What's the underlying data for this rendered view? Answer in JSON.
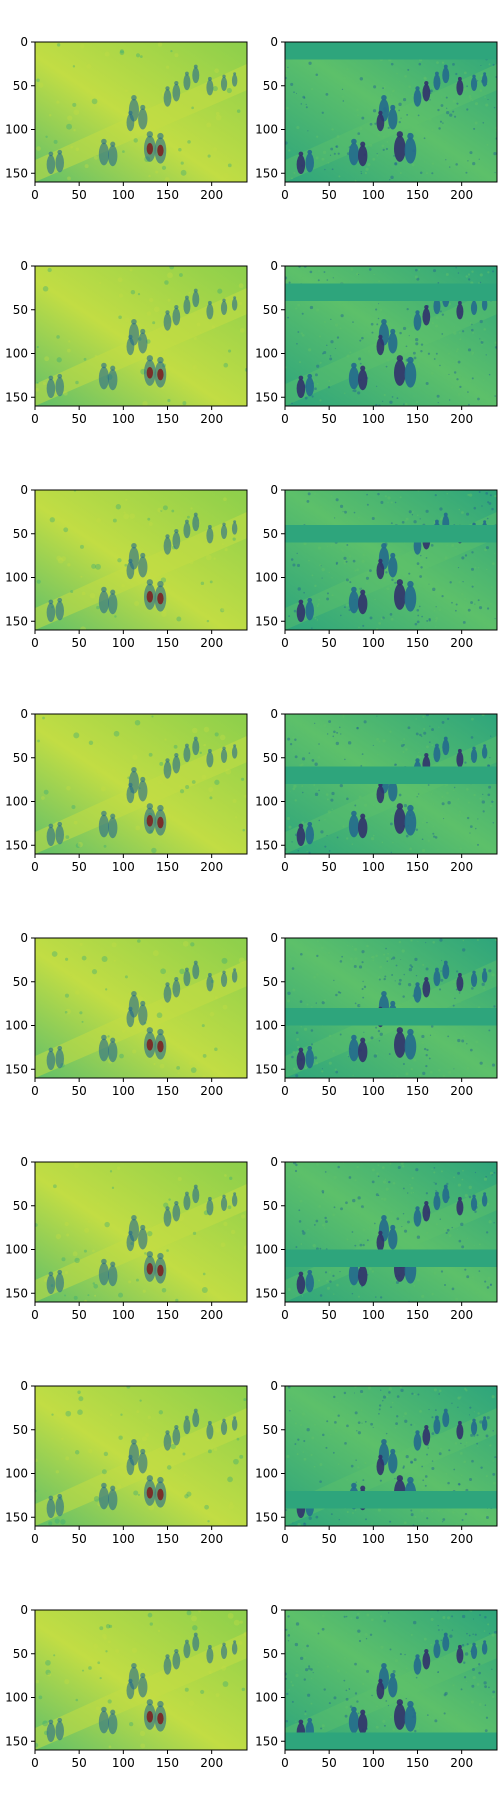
{
  "chart_data": {
    "type": "heatmap",
    "layout": "grid",
    "rows": 8,
    "cols": 2,
    "title": "",
    "xlabel": "",
    "ylabel": "",
    "xlim": [
      0,
      240
    ],
    "ylim": [
      160,
      0
    ],
    "x_ticks": [
      0,
      50,
      100,
      150,
      200
    ],
    "y_ticks": [
      0,
      50,
      100,
      150
    ],
    "colormap": "viridis",
    "palette": {
      "left_bg": "#8ccf4c",
      "left_bg_light": "#c2dd44",
      "left_bg_dark": "#61bf69",
      "right_bg": "#2ea57c",
      "right_light": "#5dc06a",
      "right_dark": "#3a5c8e",
      "figure_dark": "#31326c",
      "figure_mid": "#246a8d",
      "hot_red": "#7e1c1c"
    },
    "panels": [
      {
        "row": 0,
        "col": 0,
        "kind": "reconstruction",
        "blank_band": null
      },
      {
        "row": 0,
        "col": 1,
        "kind": "masked_input",
        "blank_band": [
          0,
          20
        ]
      },
      {
        "row": 1,
        "col": 0,
        "kind": "reconstruction",
        "blank_band": null
      },
      {
        "row": 1,
        "col": 1,
        "kind": "masked_input",
        "blank_band": [
          20,
          40
        ]
      },
      {
        "row": 2,
        "col": 0,
        "kind": "reconstruction",
        "blank_band": null
      },
      {
        "row": 2,
        "col": 1,
        "kind": "masked_input",
        "blank_band": [
          40,
          60
        ]
      },
      {
        "row": 3,
        "col": 0,
        "kind": "reconstruction",
        "blank_band": null
      },
      {
        "row": 3,
        "col": 1,
        "kind": "masked_input",
        "blank_band": [
          60,
          80
        ]
      },
      {
        "row": 4,
        "col": 0,
        "kind": "reconstruction",
        "blank_band": null
      },
      {
        "row": 4,
        "col": 1,
        "kind": "masked_input",
        "blank_band": [
          80,
          100
        ]
      },
      {
        "row": 5,
        "col": 0,
        "kind": "reconstruction",
        "blank_band": null
      },
      {
        "row": 5,
        "col": 1,
        "kind": "masked_input",
        "blank_band": [
          100,
          120
        ]
      },
      {
        "row": 6,
        "col": 0,
        "kind": "reconstruction",
        "blank_band": null
      },
      {
        "row": 6,
        "col": 1,
        "kind": "masked_input",
        "blank_band": [
          120,
          140
        ]
      },
      {
        "row": 7,
        "col": 0,
        "kind": "reconstruction",
        "blank_band": null
      },
      {
        "row": 7,
        "col": 1,
        "kind": "masked_input",
        "blank_band": [
          140,
          160
        ]
      }
    ]
  }
}
